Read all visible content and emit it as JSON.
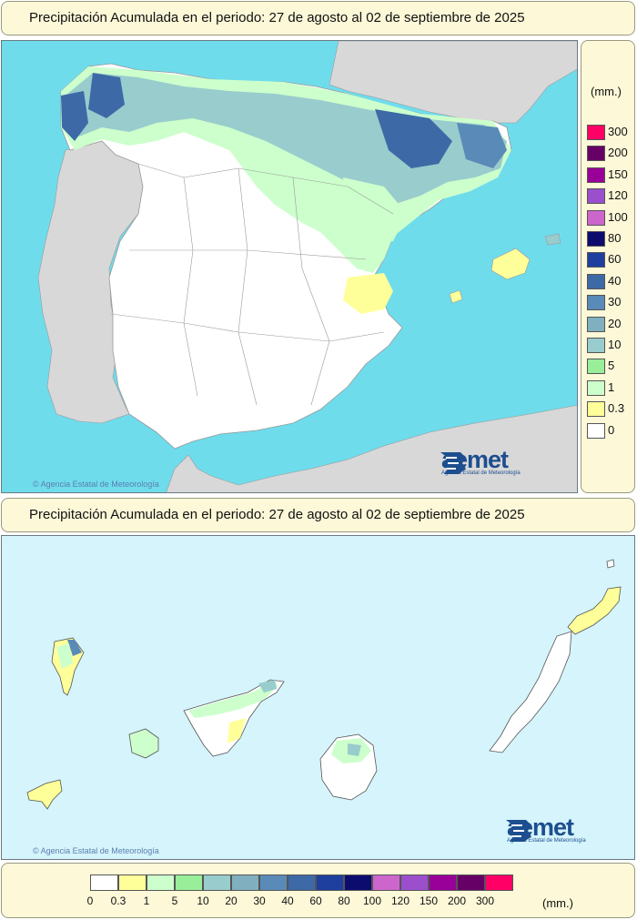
{
  "top_panel": {
    "title": "Precipitación Acumulada en el periodo: 27 de agosto al 02 de septiembre de 2025",
    "credit": "Agencia Estatal de Meteorología",
    "logo_name": "aemet",
    "logo_sub": "Agencia Estatal de Meteorología"
  },
  "bottom_panel": {
    "title": "Precipitación Acumulada en el periodo: 27 de agosto al 02 de septiembre de 2025",
    "credit": "Agencia Estatal de Meteorología",
    "logo_name": "aemet",
    "logo_sub": "Agencia Estatal de Meteorología"
  },
  "legend": {
    "unit": "(mm.)",
    "classes": [
      {
        "label": "0",
        "color": "#ffffff"
      },
      {
        "label": "0.3",
        "color": "#ffff99"
      },
      {
        "label": "1",
        "color": "#ccffcc"
      },
      {
        "label": "5",
        "color": "#99ee99"
      },
      {
        "label": "10",
        "color": "#99cccc"
      },
      {
        "label": "20",
        "color": "#80b0c0"
      },
      {
        "label": "30",
        "color": "#5a8ab8"
      },
      {
        "label": "40",
        "color": "#3d6aa6"
      },
      {
        "label": "60",
        "color": "#1f3f9f"
      },
      {
        "label": "80",
        "color": "#0c0c6e"
      },
      {
        "label": "100",
        "color": "#cc66cc"
      },
      {
        "label": "120",
        "color": "#9b4fcc"
      },
      {
        "label": "150",
        "color": "#990099"
      },
      {
        "label": "200",
        "color": "#660066"
      },
      {
        "label": "300",
        "color": "#ff0066"
      }
    ]
  },
  "colors": {
    "sea": "#6fdcec",
    "land_neighbor": "#d8d8d8",
    "atlantic": "#d5f4fb"
  }
}
